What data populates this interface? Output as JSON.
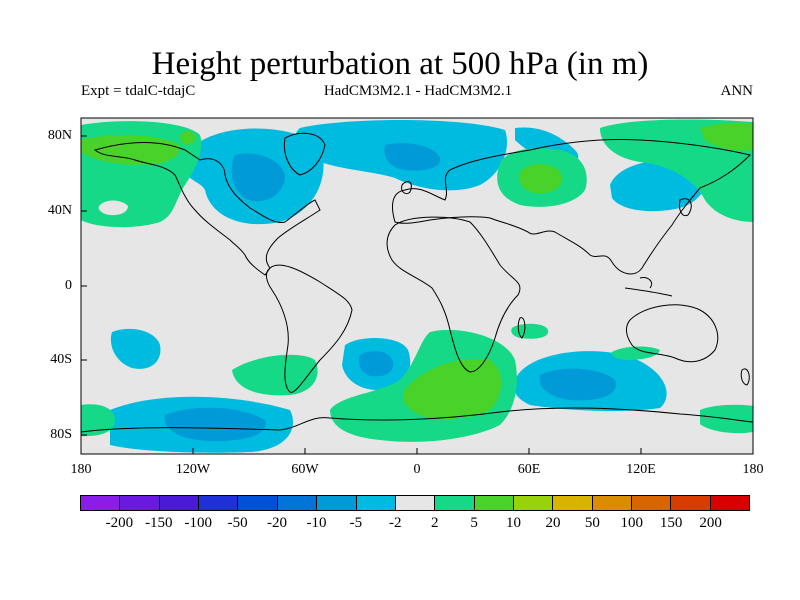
{
  "figure": {
    "title": "Height perturbation at 500 hPa (in m)",
    "subtitle_left": "Expt = tdalC-tdajC",
    "subtitle_center": "HadCM3M2.1 - HadCM3M2.1",
    "subtitle_right": "ANN"
  },
  "axes": {
    "lat_labels": [
      "80N",
      "40N",
      "0",
      "40S",
      "80S"
    ],
    "lon_labels": [
      "180",
      "120W",
      "60W",
      "0",
      "60E",
      "120E",
      "180"
    ]
  },
  "colors": {
    "neutral": "#e6e6e6",
    "neg_2_5": "#00bbe0",
    "neg_5_10": "#009ad8",
    "pos_2_5": "#16d988",
    "pos_5_10": "#48d22a",
    "coast": "#000000"
  },
  "colorbar": {
    "colors": [
      "#8a1de8",
      "#6a19e0",
      "#4a1ad8",
      "#2030d8",
      "#0050d8",
      "#0074d8",
      "#009ad8",
      "#00bbe0",
      "#e6e6e6",
      "#16d988",
      "#48d22a",
      "#98d20a",
      "#d8b400",
      "#d88e00",
      "#d86600",
      "#d83c00",
      "#d80000"
    ],
    "labels": [
      "-200",
      "-150",
      "-100",
      "-50",
      "-20",
      "-10",
      "-5",
      "-2",
      "2",
      "5",
      "10",
      "20",
      "50",
      "100",
      "150",
      "200"
    ]
  }
}
